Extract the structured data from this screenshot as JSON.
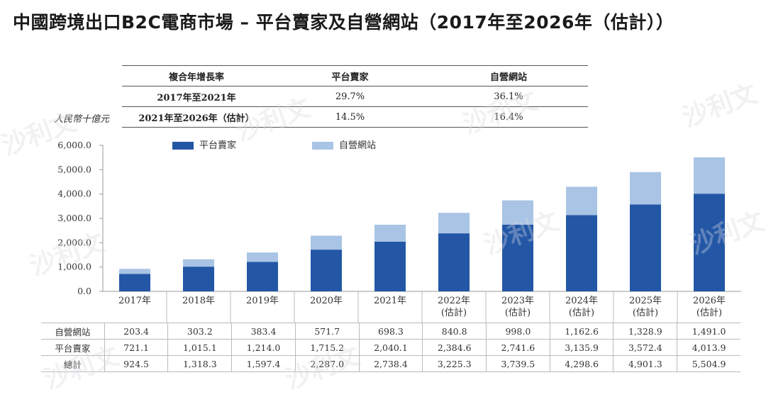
{
  "title": "中國跨境出口B2C電商市場 – 平台賣家及自營網站（2017年至2026年（估計））",
  "unit_label": "人民幣十億元",
  "watermark": "沙利文",
  "cagr_table": {
    "header": [
      "複合年增長率",
      "平台賣家",
      "自營網站"
    ],
    "rows": [
      {
        "period": "2017年至2021年",
        "platform": "29.7%",
        "own_site": "36.1%"
      },
      {
        "period": "2021年至2026年（估計）",
        "platform": "14.5%",
        "own_site": "16.4%"
      }
    ]
  },
  "legend": {
    "platform": "平台賣家",
    "own_site": "自營網站"
  },
  "colors": {
    "platform": "#2357a6",
    "own_site": "#a9c4e4",
    "axis": "#999999"
  },
  "chart_data": {
    "type": "bar",
    "stacked": true,
    "ylim": [
      0,
      6000
    ],
    "yticks": [
      "0.0",
      "1,000.0",
      "2,000.0",
      "3,000.0",
      "4,000.0",
      "5,000.0",
      "6,000.0"
    ],
    "ytick_values": [
      0,
      1000,
      2000,
      3000,
      4000,
      5000,
      6000
    ],
    "categories": [
      "2017年",
      "2018年",
      "2019年",
      "2020年",
      "2021年",
      "2022年\n(估計)",
      "2023年\n(估計)",
      "2024年\n(估計)",
      "2025年\n(估計)",
      "2026年\n(估計)"
    ],
    "series": [
      {
        "name": "平台賣家",
        "values": [
          721.1,
          1015.1,
          1214.0,
          1715.2,
          2040.1,
          2384.6,
          2741.6,
          3135.9,
          3572.4,
          4013.9
        ]
      },
      {
        "name": "自營網站",
        "values": [
          203.4,
          303.2,
          383.4,
          571.7,
          698.3,
          840.8,
          998.0,
          1162.6,
          1328.9,
          1491.0
        ]
      }
    ],
    "legend_position": "top"
  },
  "data_table": {
    "rows": [
      {
        "label": "自營網站",
        "values": [
          "203.4",
          "303.2",
          "383.4",
          "571.7",
          "698.3",
          "840.8",
          "998.0",
          "1,162.6",
          "1,328.9",
          "1,491.0"
        ]
      },
      {
        "label": "平台賣家",
        "values": [
          "721.1",
          "1,015.1",
          "1,214.0",
          "1,715.2",
          "2,040.1",
          "2,384.6",
          "2,741.6",
          "3,135.9",
          "3,572.4",
          "4,013.9"
        ]
      },
      {
        "label": "總計",
        "values": [
          "924.5",
          "1,318.3",
          "1,597.4",
          "2,287.0",
          "2,738.4",
          "3,225.3",
          "3,739.5",
          "4,298.6",
          "4,901.3",
          "5,504.9"
        ]
      }
    ]
  }
}
